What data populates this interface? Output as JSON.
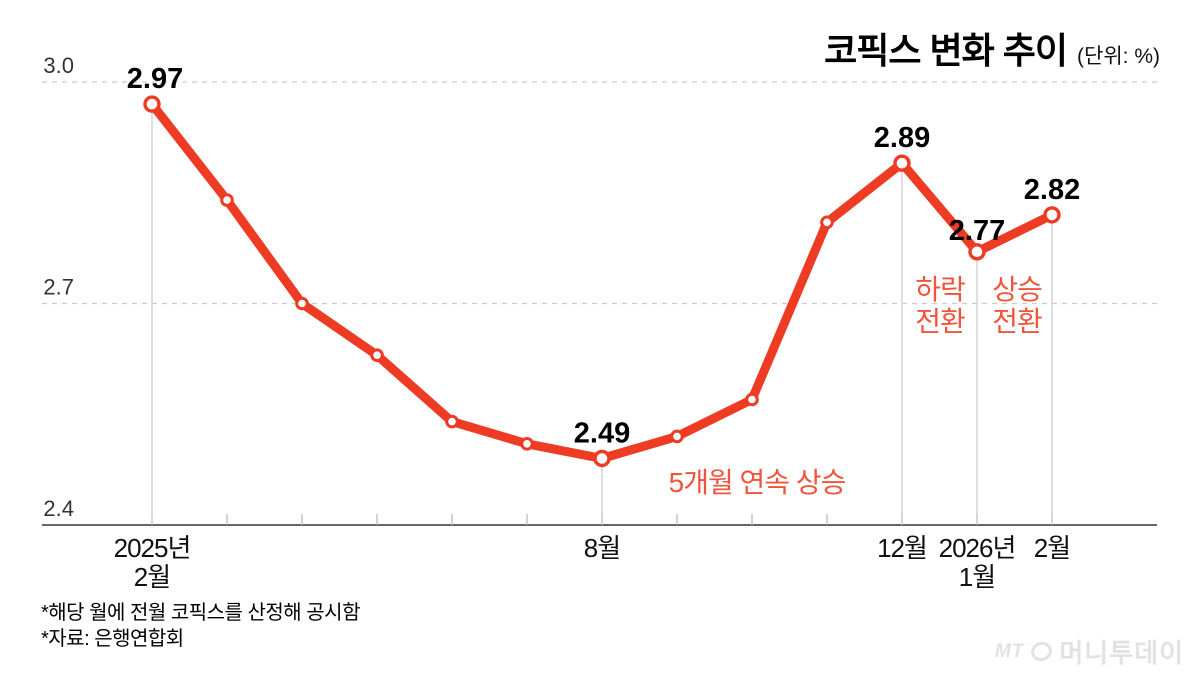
{
  "title": {
    "text": "코픽스 변화 추이",
    "unit": "(단위: %)"
  },
  "chart_data": {
    "type": "line",
    "title": "코픽스 변화 추이",
    "unit": "%",
    "categories": [
      "2025년 2월",
      "2025년 3월",
      "2025년 4월",
      "2025년 5월",
      "2025년 6월",
      "2025년 7월",
      "2025년 8월",
      "2025년 9월",
      "2025년 10월",
      "2025년 11월",
      "2025년 12월",
      "2026년 1월",
      "2026년 2월"
    ],
    "series": [
      {
        "name": "코픽스",
        "values": [
          2.97,
          2.84,
          2.7,
          2.63,
          2.54,
          2.51,
          2.49,
          2.52,
          2.57,
          2.81,
          2.89,
          2.77,
          2.82
        ]
      }
    ],
    "ylim": [
      2.4,
      3.0
    ],
    "yticks": [
      {
        "label": "3.0",
        "value": 3.0
      },
      {
        "label": "2.7",
        "value": 2.7
      },
      {
        "label": "2.4",
        "value": 2.4
      }
    ],
    "grid": "horizontal dashed at 3.0 and 2.7, solid baseline at 2.4",
    "legend": "none",
    "x_axis_labels": [
      {
        "index": 0,
        "lines": [
          "2025년",
          "2월"
        ]
      },
      {
        "index": 6,
        "lines": [
          "8월"
        ]
      },
      {
        "index": 10,
        "lines": [
          "12월"
        ]
      },
      {
        "index": 11,
        "lines": [
          "2026년",
          "1월"
        ]
      },
      {
        "index": 12,
        "lines": [
          "2월"
        ]
      }
    ],
    "point_labels": [
      {
        "index": 0,
        "text": "2.97"
      },
      {
        "index": 6,
        "text": "2.49"
      },
      {
        "index": 10,
        "text": "2.89"
      },
      {
        "index": 11,
        "text": "2.77"
      },
      {
        "index": 12,
        "text": "2.82"
      }
    ],
    "annotations": [
      {
        "lines": [
          "하락",
          "전환"
        ]
      },
      {
        "lines": [
          "상승",
          "전환"
        ]
      },
      {
        "lines": [
          "5개월 연속 상승"
        ]
      }
    ]
  },
  "colors": {
    "line": "#ee3b24",
    "point_fill": "#ffffff",
    "annotation": "#f1543c",
    "grid": "#cccccc",
    "axis": "#666666",
    "tick": "#bbbbbb",
    "dropline": "#cccccc",
    "point_label": "#000000",
    "axis_label": "#111111",
    "ytick_label": "#333333",
    "logo": "#e2e2e2"
  },
  "footnotes": [
    "*해당 월에 전월 코픽스를 산정해 공시함",
    "*자료: 은행연합회"
  ],
  "logo": {
    "mt": "MT",
    "name": "머니투데이"
  }
}
